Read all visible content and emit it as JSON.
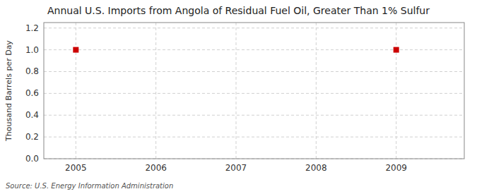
{
  "chart_data": {
    "type": "scatter",
    "title": "Annual U.S. Imports from Angola of Residual Fuel Oil, Greater Than 1% Sulfur",
    "y_label": "Thousand Barrels per Day",
    "annotations": [
      "Source: U.S. Energy Information Administration"
    ],
    "x": [
      2005,
      2009
    ],
    "values": [
      1.0,
      1.0
    ],
    "color": "#cc0000",
    "marker": "square",
    "xlim": [
      2004.6,
      2009.85
    ],
    "ylim": [
      0.0,
      1.25
    ],
    "xticks": [
      2005,
      2006,
      2007,
      2008,
      2009
    ],
    "yticks": [
      {
        "value": 0.0,
        "label": "0.0"
      },
      0.2,
      0.4,
      0.6,
      0.8,
      {
        "value": 1.0,
        "label": "1.0"
      },
      1.2
    ],
    "grid": true
  }
}
